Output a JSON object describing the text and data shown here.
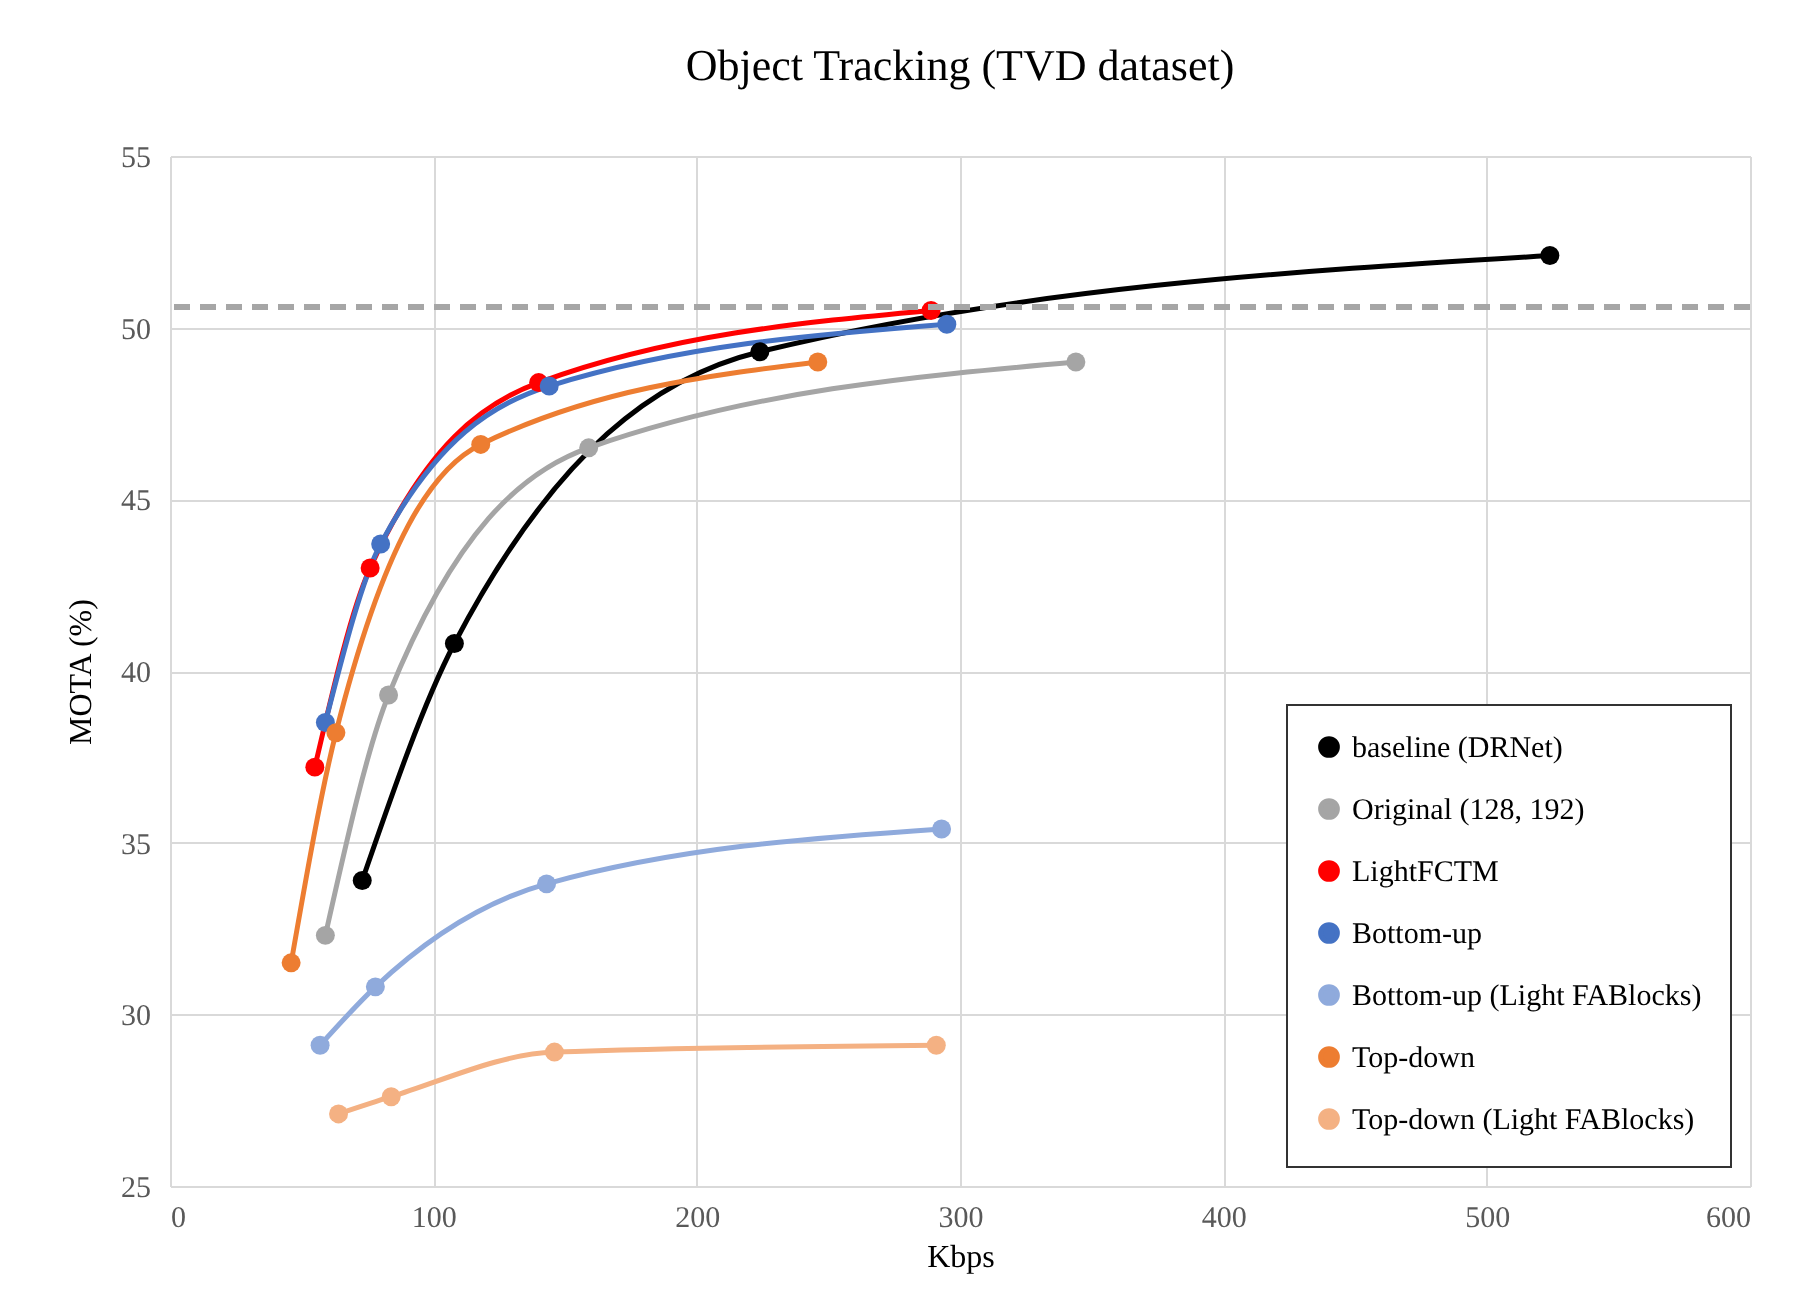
{
  "chart_data": {
    "type": "line",
    "title": "Object Tracking (TVD dataset)",
    "xlabel": "Kbps",
    "ylabel": "MOTA (%)",
    "xlim": [
      0,
      600
    ],
    "xticks": [
      0,
      100,
      200,
      300,
      400,
      500,
      600
    ],
    "ylim": [
      25,
      55
    ],
    "yticks": [
      25,
      30,
      35,
      40,
      45,
      50,
      55
    ],
    "grid": true,
    "legend": "bottom right",
    "marker": "circle",
    "line_style": "solid",
    "ref_lines": [
      {
        "axis": "y",
        "value": 50.6,
        "color": "#a6a6a6",
        "line_style": "dashed"
      }
    ],
    "series": [
      {
        "name": "baseline (DRNet)",
        "color": "#000000",
        "x": [
          73,
          108,
          224,
          524
        ],
        "values": [
          33.9,
          40.8,
          49.3,
          52.1
        ]
      },
      {
        "name": "Original (128, 192)",
        "color": "#a5a5a5",
        "x": [
          59,
          83,
          159,
          344
        ],
        "values": [
          32.3,
          39.3,
          46.5,
          49.0
        ]
      },
      {
        "name": "LightFCTM",
        "color": "#ff0000",
        "x": [
          55,
          76,
          140,
          289
        ],
        "values": [
          37.2,
          43.0,
          48.4,
          50.5
        ]
      },
      {
        "name": "Bottom-up",
        "color": "#4472c4",
        "x": [
          59,
          80,
          144,
          295
        ],
        "values": [
          38.5,
          43.7,
          48.3,
          50.1
        ]
      },
      {
        "name": "Bottom-up (Light FABlocks)",
        "color": "#8faadc",
        "x": [
          57,
          78,
          143,
          293
        ],
        "values": [
          29.1,
          30.8,
          33.8,
          35.4
        ]
      },
      {
        "name": "Top-down",
        "color": "#ed7d31",
        "x": [
          46,
          63,
          118,
          246
        ],
        "values": [
          31.5,
          38.2,
          46.6,
          49.0
        ]
      },
      {
        "name": "Top-down (Light FABlocks)",
        "color": "#f4b183",
        "x": [
          64,
          84,
          146,
          291
        ],
        "values": [
          27.1,
          27.6,
          28.9,
          29.1
        ]
      }
    ]
  }
}
